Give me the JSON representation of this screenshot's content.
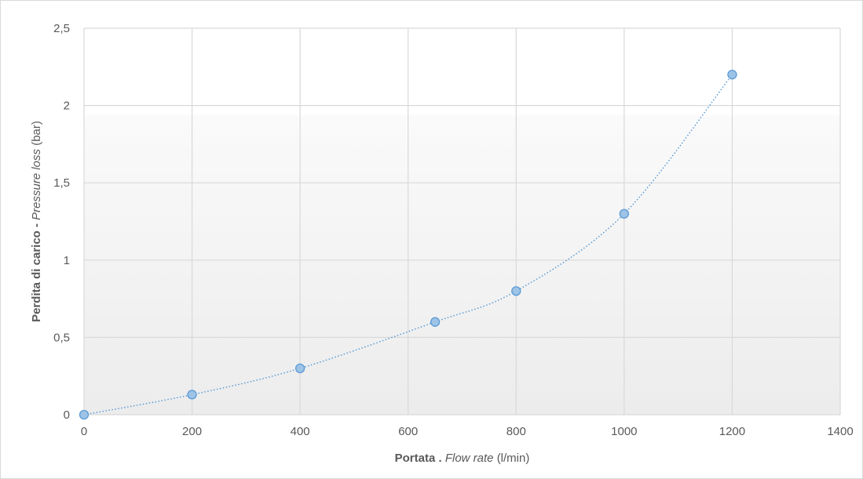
{
  "chart_data": {
    "type": "scatter",
    "title": "",
    "xlabel_parts": [
      "Portata .",
      "Flow rate",
      "(l/min)"
    ],
    "ylabel_parts": [
      "Perdita di carico -",
      "Pressure loss",
      "(bar)"
    ],
    "xlim": [
      0,
      1400
    ],
    "ylim": [
      0,
      2.5
    ],
    "x_ticks": [
      0,
      200,
      400,
      600,
      800,
      1000,
      1200,
      1400
    ],
    "x_tick_labels": [
      "0",
      "200",
      "400",
      "600",
      "800",
      "1000",
      "1200",
      "1400"
    ],
    "y_ticks": [
      0,
      0.5,
      1,
      1.5,
      2,
      2.5
    ],
    "y_tick_labels": [
      "0",
      "0,5",
      "1",
      "1,5",
      "2",
      "2,5"
    ],
    "grid": true,
    "legend": "none",
    "series": [
      {
        "x": [
          0,
          200,
          400,
          650,
          800,
          1000,
          1200
        ],
        "y": [
          0,
          0.13,
          0.3,
          0.6,
          0.8,
          1.3,
          2.2
        ],
        "marker_fill": "#9dc3e6",
        "marker_stroke": "#5b9bd5",
        "line_color": "#5b9bd5",
        "line_style": "dotted smooth"
      }
    ],
    "colors": {
      "grid": "#d9d9d9",
      "text": "#595959",
      "plot_band": "#f2f2f2"
    }
  }
}
